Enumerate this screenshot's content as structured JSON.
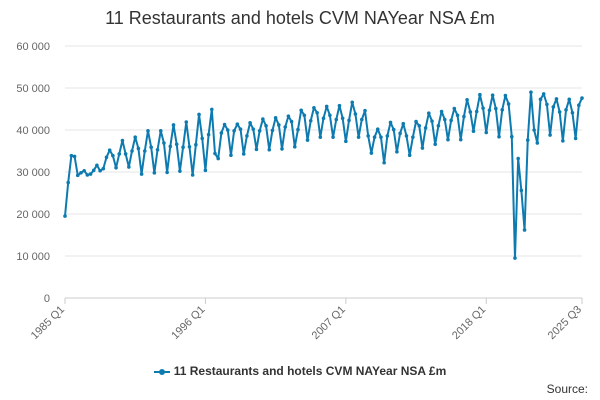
{
  "chart_data": {
    "type": "line",
    "title": "11 Restaurants and hotels CVM NAYear NSA £m",
    "legend": [
      "11 Restaurants and hotels CVM NAYear NSA £m"
    ],
    "legend_position": "bottom",
    "source": "Source:",
    "x_tick_labels": [
      "1985 Q1",
      "1996 Q1",
      "2007 Q1",
      "2018 Q1",
      "2025 Q3"
    ],
    "y_tick_labels": [
      "0",
      "10 000",
      "20 000",
      "30 000",
      "40 000",
      "50 000",
      "60 000"
    ],
    "ylim": [
      0,
      60000
    ],
    "grid": "horizontal",
    "color": "#0e7bb0",
    "x_start": "1985 Q1",
    "x_end": "2025 Q3",
    "series": [
      {
        "name": "11 Restaurants and hotels CVM NAYear NSA £m",
        "values": [
          19500,
          27500,
          33900,
          33700,
          29200,
          29800,
          30300,
          29300,
          29500,
          30400,
          31600,
          30300,
          30800,
          33500,
          35200,
          33900,
          31000,
          34300,
          37500,
          34300,
          31200,
          35000,
          38300,
          35600,
          29500,
          35000,
          39800,
          35900,
          29800,
          35300,
          39800,
          36900,
          29900,
          36100,
          41200,
          36600,
          30200,
          35900,
          41900,
          36000,
          29300,
          36500,
          43700,
          38000,
          30400,
          38900,
          44900,
          34400,
          33200,
          39300,
          41300,
          40000,
          34000,
          39800,
          41400,
          40200,
          34300,
          38600,
          41700,
          40200,
          35400,
          39800,
          42600,
          41000,
          35300,
          39900,
          42900,
          41200,
          35500,
          40700,
          43300,
          42000,
          36000,
          40100,
          44700,
          43500,
          37600,
          42200,
          45300,
          44100,
          38300,
          42800,
          45600,
          43500,
          38300,
          42500,
          45800,
          42800,
          37300,
          42300,
          46600,
          43800,
          38300,
          42500,
          44600,
          38600,
          34500,
          38300,
          40200,
          38300,
          32200,
          38600,
          41800,
          40100,
          34800,
          39200,
          41500,
          38600,
          34000,
          38300,
          42000,
          41000,
          35700,
          40500,
          44000,
          42100,
          36600,
          41000,
          44400,
          42500,
          37700,
          42300,
          45100,
          43500,
          37700,
          43200,
          47200,
          44300,
          39700,
          44400,
          48400,
          45200,
          39400,
          44700,
          48300,
          45100,
          38400,
          44800,
          48200,
          46200,
          38400,
          9500,
          33200,
          25600,
          16200,
          37600,
          49000,
          40000,
          36900,
          47300,
          48600,
          46100,
          38800,
          45500,
          47400,
          44300,
          37400,
          44800,
          47300,
          44100,
          38000,
          45900,
          47600
        ]
      }
    ]
  }
}
